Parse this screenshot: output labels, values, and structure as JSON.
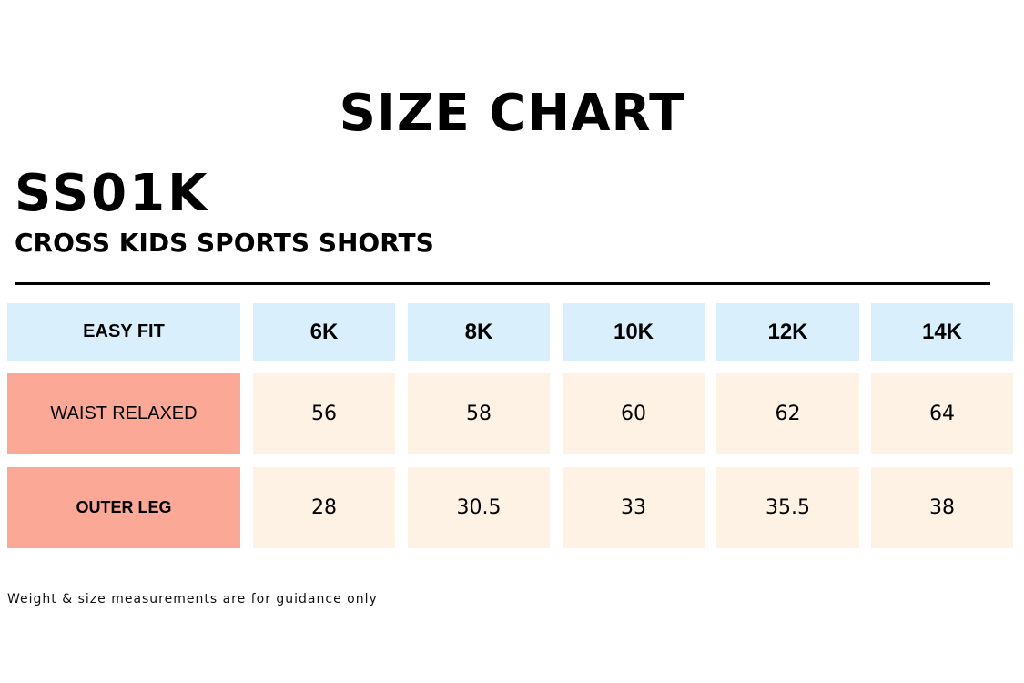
{
  "header": {
    "title": "SIZE CHART",
    "product_code": "SS01K",
    "product_name": "CROSS KIDS SPORTS SHORTS"
  },
  "table": {
    "columns": [
      "EASY FIT",
      "6K",
      "8K",
      "10K",
      "12K",
      "14K"
    ],
    "rows": [
      {
        "label": "WAIST RELAXED",
        "values": [
          "56",
          "58",
          "60",
          "62",
          "64"
        ]
      },
      {
        "label": "OUTER LEG",
        "values": [
          "28",
          "30.5",
          "33",
          "35.5",
          "38"
        ]
      }
    ]
  },
  "footnote": "Weight & size measurements are for guidance only",
  "colors": {
    "header_bg": "#d9f0fc",
    "row_label_bg": "#fca896",
    "value_bg": "#fdf2e3",
    "text": "#000000",
    "divider": "#000000"
  }
}
